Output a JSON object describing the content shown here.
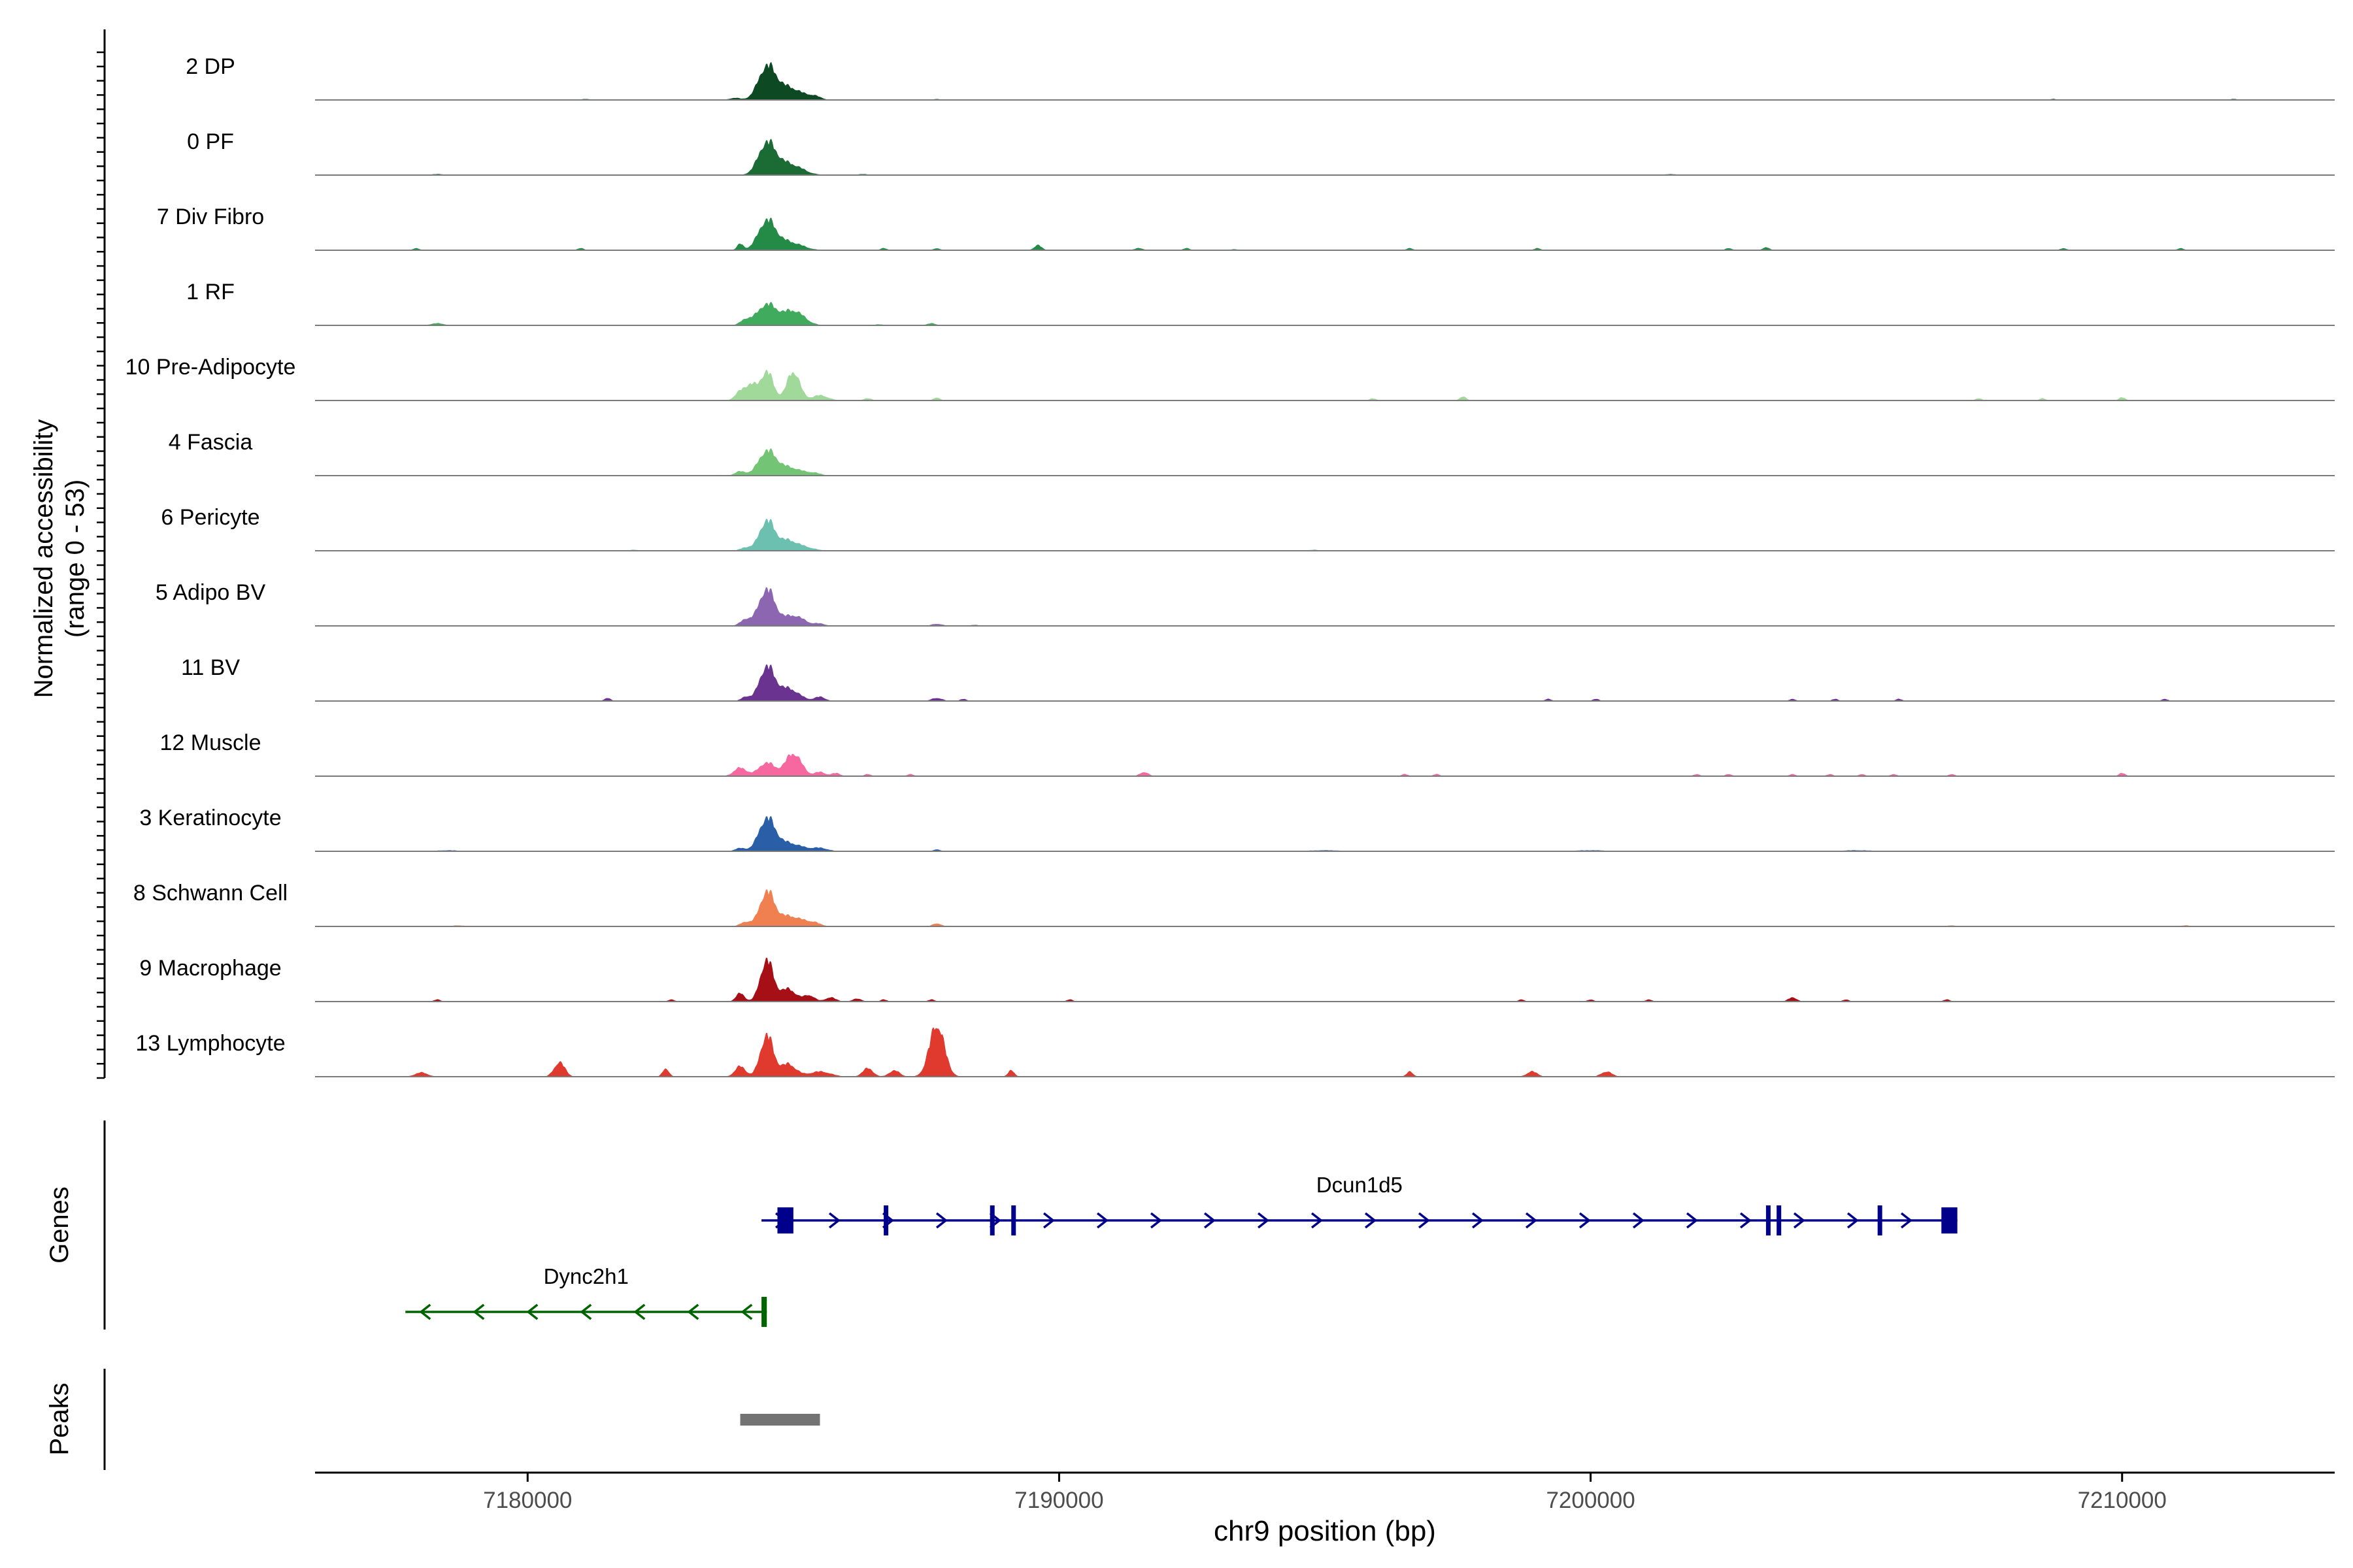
{
  "chart_data": {
    "type": "area",
    "title": "",
    "xlabel": "chr9 position (bp)",
    "ylabel": "Normalized accessibility",
    "ylabel_range": "(range 0 - 53)",
    "xlim": [
      7176000,
      7214000
    ],
    "ylim": [
      0,
      53
    ],
    "x_ticks": [
      7180000,
      7190000,
      7200000,
      7210000
    ],
    "x_tick_labels": [
      "7180000",
      "7190000",
      "7200000",
      "7210000"
    ],
    "grid": false,
    "tracks": [
      {
        "name": "2 DP",
        "color": "#0d4a24",
        "peaks": [
          [
            7184500,
            30,
            160
          ],
          [
            7184900,
            12,
            250
          ],
          [
            7185400,
            3,
            120
          ],
          [
            7183900,
            2,
            100
          ],
          [
            7181100,
            1,
            80
          ],
          [
            7187700,
            1,
            60
          ],
          [
            7208700,
            1,
            60
          ],
          [
            7212100,
            1,
            60
          ]
        ]
      },
      {
        "name": "0 PF",
        "color": "#1b6b35",
        "peaks": [
          [
            7184500,
            29,
            160
          ],
          [
            7184900,
            11,
            250
          ],
          [
            7178300,
            1,
            120
          ],
          [
            7186300,
            1,
            100
          ],
          [
            7201500,
            1,
            100
          ]
        ]
      },
      {
        "name": "7 Div Fibro",
        "color": "#238b45",
        "peaks": [
          [
            7184500,
            27,
            160
          ],
          [
            7184000,
            6,
            60
          ],
          [
            7184900,
            8,
            250
          ],
          [
            7189600,
            5,
            70
          ],
          [
            7186700,
            2,
            60
          ],
          [
            7187700,
            2,
            60
          ],
          [
            7191500,
            2,
            80
          ],
          [
            7196600,
            2,
            60
          ],
          [
            7203300,
            3,
            60
          ],
          [
            7177900,
            2,
            60
          ],
          [
            7181000,
            2,
            60
          ],
          [
            7192400,
            2,
            60
          ],
          [
            7199000,
            2,
            60
          ],
          [
            7202600,
            2,
            60
          ],
          [
            7208900,
            2,
            60
          ],
          [
            7211100,
            2,
            60
          ],
          [
            7193300,
            1,
            60
          ]
        ]
      },
      {
        "name": "1 RF",
        "color": "#41ab5d",
        "peaks": [
          [
            7184500,
            20,
            180
          ],
          [
            7185000,
            14,
            200
          ],
          [
            7184100,
            5,
            100
          ],
          [
            7178300,
            2,
            120
          ],
          [
            7187600,
            2,
            80
          ],
          [
            7186600,
            1,
            80
          ]
        ]
      },
      {
        "name": "10 Pre-Adipocyte",
        "color": "#a1d99b",
        "peaks": [
          [
            7184500,
            28,
            120
          ],
          [
            7184000,
            8,
            100
          ],
          [
            7184200,
            14,
            100
          ],
          [
            7185000,
            28,
            120
          ],
          [
            7185500,
            5,
            150
          ],
          [
            7187700,
            3,
            60
          ],
          [
            7197600,
            4,
            60
          ],
          [
            7195900,
            2,
            60
          ],
          [
            7207300,
            2,
            60
          ],
          [
            7208500,
            2,
            60
          ],
          [
            7210000,
            3,
            60
          ],
          [
            7186400,
            2,
            80
          ]
        ]
      },
      {
        "name": "4 Fascia",
        "color": "#74c476",
        "peaks": [
          [
            7184500,
            22,
            160
          ],
          [
            7184900,
            8,
            250
          ],
          [
            7184000,
            4,
            100
          ],
          [
            7185400,
            2,
            120
          ]
        ]
      },
      {
        "name": "6 Pericyte",
        "color": "#6cc0b0",
        "peaks": [
          [
            7184500,
            28,
            140
          ],
          [
            7184900,
            10,
            200
          ],
          [
            7185300,
            2,
            150
          ],
          [
            7184100,
            3,
            100
          ],
          [
            7182000,
            1,
            80
          ],
          [
            7194800,
            1,
            80
          ]
        ]
      },
      {
        "name": "5 Adipo BV",
        "color": "#8c66b0",
        "peaks": [
          [
            7184500,
            35,
            150
          ],
          [
            7185000,
            10,
            200
          ],
          [
            7184100,
            6,
            100
          ],
          [
            7185500,
            2,
            100
          ],
          [
            7187700,
            2,
            100
          ],
          [
            7188400,
            1,
            80
          ]
        ]
      },
      {
        "name": "11 BV",
        "color": "#6a3390",
        "peaks": [
          [
            7184500,
            32,
            140
          ],
          [
            7184900,
            12,
            200
          ],
          [
            7185500,
            4,
            100
          ],
          [
            7184100,
            4,
            80
          ],
          [
            7187700,
            3,
            100
          ],
          [
            7188200,
            2,
            60
          ],
          [
            7181500,
            3,
            60
          ],
          [
            7199200,
            2,
            60
          ],
          [
            7200100,
            2,
            60
          ],
          [
            7203800,
            2,
            60
          ],
          [
            7204600,
            2,
            60
          ],
          [
            7205800,
            2,
            60
          ],
          [
            7210800,
            2,
            60
          ]
        ]
      },
      {
        "name": "12 Muscle",
        "color": "#f768a1",
        "peaks": [
          [
            7184500,
            13,
            150
          ],
          [
            7185000,
            22,
            150
          ],
          [
            7184000,
            8,
            120
          ],
          [
            7185500,
            4,
            100
          ],
          [
            7185800,
            3,
            80
          ],
          [
            7186400,
            2,
            60
          ],
          [
            7187200,
            2,
            60
          ],
          [
            7191600,
            4,
            80
          ],
          [
            7196500,
            2,
            60
          ],
          [
            7197100,
            2,
            60
          ],
          [
            7202000,
            2,
            60
          ],
          [
            7202600,
            2,
            60
          ],
          [
            7203800,
            2,
            60
          ],
          [
            7204500,
            2,
            60
          ],
          [
            7205100,
            2,
            60
          ],
          [
            7205700,
            2,
            60
          ],
          [
            7206800,
            2,
            60
          ],
          [
            7210000,
            3,
            60
          ]
        ]
      },
      {
        "name": "3 Keratinocyte",
        "color": "#2a5fa8",
        "peaks": [
          [
            7184500,
            30,
            150
          ],
          [
            7184900,
            8,
            250
          ],
          [
            7185500,
            3,
            150
          ],
          [
            7184000,
            3,
            100
          ],
          [
            7187700,
            2,
            60
          ],
          [
            7178500,
            1,
            200
          ],
          [
            7195000,
            1,
            300
          ],
          [
            7200000,
            1,
            300
          ],
          [
            7205000,
            1,
            300
          ]
        ]
      },
      {
        "name": "8 Schwann Cell",
        "color": "#f08050",
        "peaks": [
          [
            7184500,
            30,
            130
          ],
          [
            7184900,
            10,
            300
          ],
          [
            7184100,
            4,
            100
          ],
          [
            7185400,
            2,
            100
          ],
          [
            7187700,
            3,
            80
          ],
          [
            7178700,
            1,
            120
          ],
          [
            7206800,
            1,
            80
          ],
          [
            7211200,
            1,
            80
          ]
        ]
      },
      {
        "name": "9 Macrophage",
        "color": "#a50f15",
        "peaks": [
          [
            7184500,
            40,
            120
          ],
          [
            7184000,
            8,
            80
          ],
          [
            7184900,
            12,
            150
          ],
          [
            7185300,
            6,
            100
          ],
          [
            7185700,
            4,
            100
          ],
          [
            7186200,
            3,
            80
          ],
          [
            7186700,
            2,
            60
          ],
          [
            7187600,
            2,
            60
          ],
          [
            7190200,
            2,
            60
          ],
          [
            7182700,
            2,
            60
          ],
          [
            7203800,
            4,
            80
          ],
          [
            7204800,
            2,
            60
          ],
          [
            7206700,
            2,
            60
          ],
          [
            7178300,
            2,
            60
          ],
          [
            7198700,
            2,
            60
          ],
          [
            7200000,
            2,
            60
          ],
          [
            7201100,
            2,
            60
          ]
        ]
      },
      {
        "name": "13 Lymphocyte",
        "color": "#e03a2f",
        "peaks": [
          [
            7184500,
            40,
            120
          ],
          [
            7184000,
            10,
            100
          ],
          [
            7184900,
            12,
            150
          ],
          [
            7187700,
            50,
            140
          ],
          [
            7186400,
            8,
            100
          ],
          [
            7186900,
            6,
            100
          ],
          [
            7180600,
            14,
            100
          ],
          [
            7182600,
            8,
            60
          ],
          [
            7178000,
            4,
            120
          ],
          [
            7189100,
            6,
            60
          ],
          [
            7185500,
            5,
            200
          ],
          [
            7196600,
            5,
            60
          ],
          [
            7198900,
            5,
            100
          ],
          [
            7200300,
            5,
            100
          ]
        ]
      }
    ],
    "genes": [
      {
        "name": "Dcun1d5",
        "strand": "+",
        "start": 7184400,
        "end": 7206900,
        "color": "#00008b",
        "exons": [
          [
            7184700,
            7185000
          ],
          [
            7186700,
            7186780
          ],
          [
            7188700,
            7188740
          ],
          [
            7189100,
            7189180
          ],
          [
            7203300,
            7203380
          ],
          [
            7203500,
            7203580
          ],
          [
            7205400,
            7205460
          ],
          [
            7206600,
            7206900
          ]
        ]
      },
      {
        "name": "Dync2h1",
        "strand": "-",
        "start": 7177700,
        "end": 7184500,
        "color": "#006400",
        "exons": [
          [
            7184400,
            7184500
          ]
        ]
      }
    ],
    "peaks_track": [
      {
        "start": 7184000,
        "end": 7185500,
        "color": "#737373"
      }
    ],
    "section_labels": [
      "Genes",
      "Peaks"
    ]
  }
}
